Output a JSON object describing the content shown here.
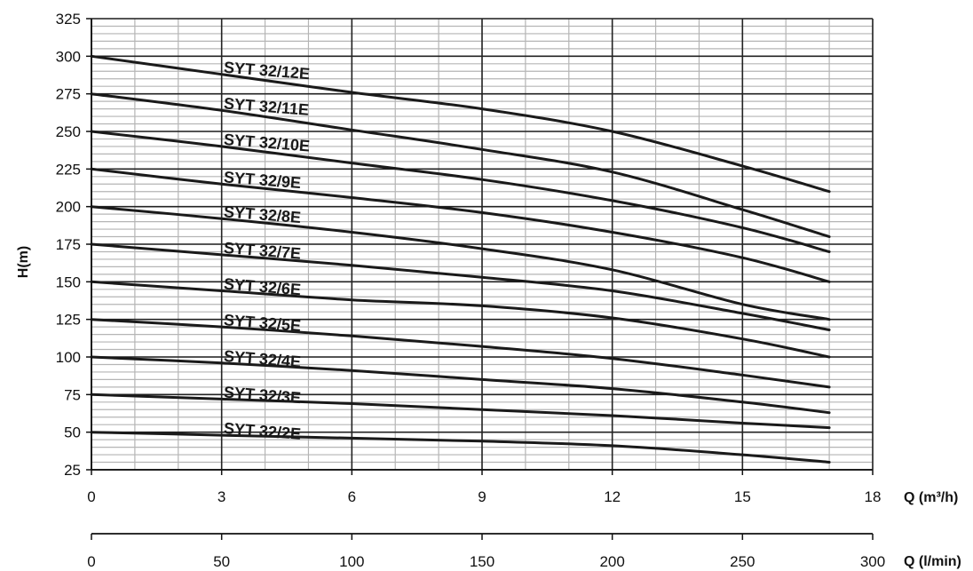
{
  "chart_data": {
    "type": "line",
    "title": "",
    "xlabel": "Q (m³/h)",
    "x2label": "Q (l/min)",
    "ylabel": "H(m)",
    "xlim": [
      0,
      18
    ],
    "ylim": [
      25,
      325
    ],
    "x2lim": [
      0,
      300
    ],
    "xticks": [
      "0",
      "3",
      "6",
      "9",
      "12",
      "15",
      "18"
    ],
    "x2ticks": [
      "0",
      "50",
      "100",
      "150",
      "200",
      "250",
      "300"
    ],
    "yticks": [
      "25",
      "50",
      "75",
      "100",
      "125",
      "150",
      "175",
      "200",
      "225",
      "250",
      "275",
      "300",
      "325"
    ],
    "grid": true,
    "x": [
      0,
      3,
      6,
      9,
      12,
      15,
      17
    ],
    "series": [
      {
        "name": "SYT 32/12E",
        "values": [
          300,
          288,
          276,
          265,
          250,
          227,
          210
        ]
      },
      {
        "name": "SYT 32/11E",
        "values": [
          275,
          264,
          251,
          238,
          223,
          198,
          180
        ]
      },
      {
        "name": "SYT 32/10E",
        "values": [
          250,
          240,
          229,
          218,
          204,
          186,
          170
        ]
      },
      {
        "name": "SYT 32/9E",
        "values": [
          225,
          215,
          206,
          196,
          183,
          166,
          150
        ]
      },
      {
        "name": "SYT 32/8E",
        "values": [
          200,
          192,
          183,
          172,
          158,
          135,
          125
        ]
      },
      {
        "name": "SYT 32/7E",
        "values": [
          175,
          168,
          161,
          153,
          144,
          129,
          118
        ]
      },
      {
        "name": "SYT 32/6E",
        "values": [
          150,
          144,
          138,
          134,
          126,
          112,
          100
        ]
      },
      {
        "name": "SYT 32/5E",
        "values": [
          125,
          120,
          114,
          107,
          99,
          88,
          80
        ]
      },
      {
        "name": "SYT 32/4E",
        "values": [
          100,
          96,
          91,
          85,
          79,
          70,
          63
        ]
      },
      {
        "name": "SYT 32/3E",
        "values": [
          75,
          72,
          69,
          65,
          61,
          56,
          53
        ]
      },
      {
        "name": "SYT 32/2E",
        "values": [
          50,
          48,
          46,
          44,
          41,
          35,
          30
        ]
      }
    ]
  }
}
